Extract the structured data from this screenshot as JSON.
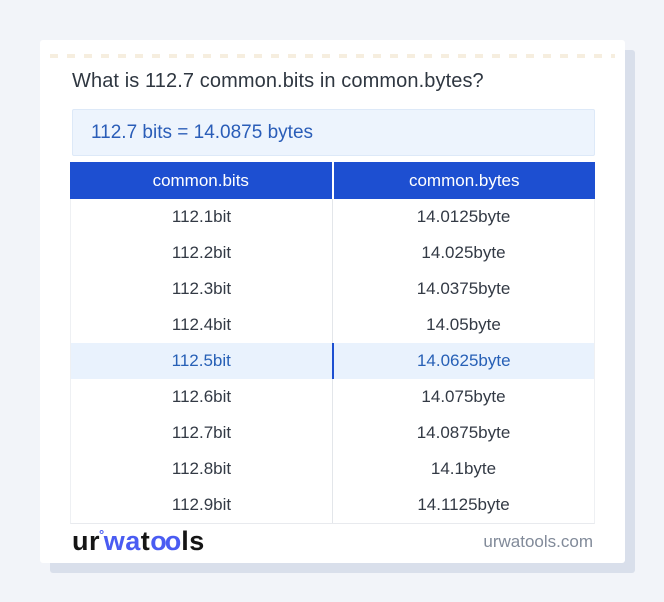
{
  "colors": {
    "accent-blue": "#1d4fd1",
    "answer-text-blue": "#2a5db8",
    "highlight-row-bg": "#e9f2fd",
    "answer-box-bg": "#edf4fd",
    "logo-blue": "#4a5cf2",
    "page-bg": "#f2f4f9",
    "card-shadow": "#d9dfeb",
    "row-text": "#333a45",
    "muted-text": "#818a99"
  },
  "card": {
    "title": "What is 112.7 common.bits in common.bytes?",
    "answer": "112.7 bits = 14.0875 bytes"
  },
  "table": {
    "columns": [
      "common.bits",
      "common.bytes"
    ],
    "rows": [
      {
        "bits": "112.1bit",
        "bytes": "14.0125byte",
        "highlight": false
      },
      {
        "bits": "112.2bit",
        "bytes": "14.025byte",
        "highlight": false
      },
      {
        "bits": "112.3bit",
        "bytes": "14.0375byte",
        "highlight": false
      },
      {
        "bits": "112.4bit",
        "bytes": "14.05byte",
        "highlight": false
      },
      {
        "bits": "112.5bit",
        "bytes": "14.0625byte",
        "highlight": true
      },
      {
        "bits": "112.6bit",
        "bytes": "14.075byte",
        "highlight": false
      },
      {
        "bits": "112.7bit",
        "bytes": "14.0875byte",
        "highlight": false
      },
      {
        "bits": "112.8bit",
        "bytes": "14.1byte",
        "highlight": false
      },
      {
        "bits": "112.9bit",
        "bytes": "14.1125byte",
        "highlight": false
      }
    ]
  },
  "footer": {
    "logo_parts": {
      "p1": "ur",
      "degree": "°",
      "p2": "wa",
      "p3": "t",
      "p4": "oo",
      "p5": "ls"
    },
    "domain": "urwatools.com"
  }
}
